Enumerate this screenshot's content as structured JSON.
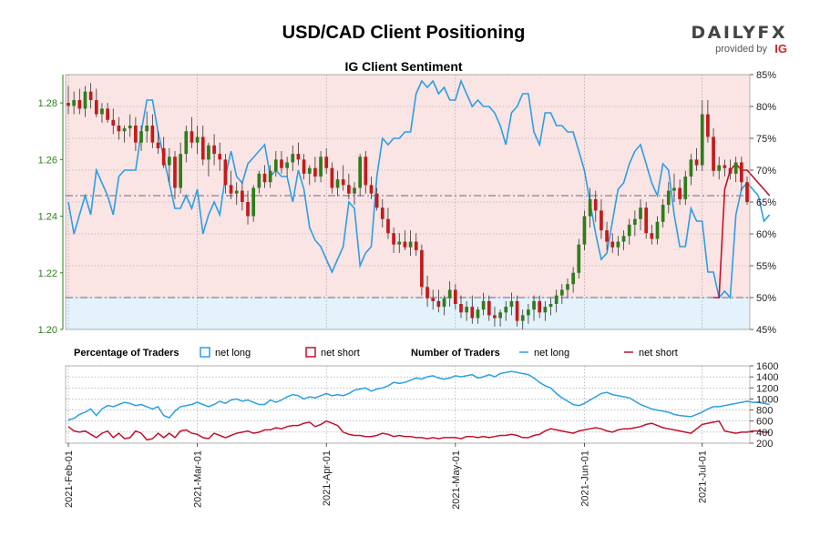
{
  "page_title": "USD/CAD Client Positioning",
  "brand": {
    "name": "DAILYFX",
    "tagline": "provided by",
    "logo": "IG"
  },
  "chart_data": {
    "type": "candlestick",
    "title": "IG Client Sentiment",
    "colors": {
      "up": "#2e7d1b",
      "down": "#c41a1a",
      "long": "#2a9fe4",
      "short": "#c1122a",
      "long_fill": "#e3f2fb",
      "short_fill": "#fbe4e4",
      "grid": "#999999",
      "ref": "#666688"
    },
    "price_axis": {
      "min": 1.2,
      "max": 1.29,
      "ticks": [
        1.2,
        1.22,
        1.24,
        1.26,
        1.28
      ],
      "tick_labels": [
        "1.20",
        "1.22",
        "1.24",
        "1.26",
        "1.28"
      ]
    },
    "pct_axis": {
      "min": 45,
      "max": 85,
      "ticks": [
        45,
        50,
        55,
        60,
        65,
        70,
        75,
        80,
        85
      ],
      "tick_labels": [
        "45%",
        "50%",
        "55%",
        "60%",
        "65%",
        "70%",
        "75%",
        "80%",
        "85%"
      ]
    },
    "ref_lines": [
      {
        "pct": 66,
        "style": "dash-dot"
      },
      {
        "pct": 50,
        "style": "dash-dot"
      }
    ],
    "candles": [
      {
        "o": 1.28,
        "h": 1.286,
        "l": 1.276,
        "c": 1.279
      },
      {
        "o": 1.279,
        "h": 1.284,
        "l": 1.276,
        "c": 1.281
      },
      {
        "o": 1.281,
        "h": 1.285,
        "l": 1.276,
        "c": 1.278
      },
      {
        "o": 1.278,
        "h": 1.286,
        "l": 1.275,
        "c": 1.284
      },
      {
        "o": 1.284,
        "h": 1.287,
        "l": 1.278,
        "c": 1.281
      },
      {
        "o": 1.281,
        "h": 1.285,
        "l": 1.275,
        "c": 1.276
      },
      {
        "o": 1.276,
        "h": 1.28,
        "l": 1.273,
        "c": 1.278
      },
      {
        "o": 1.278,
        "h": 1.28,
        "l": 1.273,
        "c": 1.274
      },
      {
        "o": 1.274,
        "h": 1.278,
        "l": 1.269,
        "c": 1.272
      },
      {
        "o": 1.272,
        "h": 1.275,
        "l": 1.267,
        "c": 1.27
      },
      {
        "o": 1.27,
        "h": 1.272,
        "l": 1.266,
        "c": 1.271
      },
      {
        "o": 1.271,
        "h": 1.276,
        "l": 1.268,
        "c": 1.272
      },
      {
        "o": 1.272,
        "h": 1.275,
        "l": 1.263,
        "c": 1.266
      },
      {
        "o": 1.266,
        "h": 1.272,
        "l": 1.263,
        "c": 1.27
      },
      {
        "o": 1.27,
        "h": 1.277,
        "l": 1.266,
        "c": 1.272
      },
      {
        "o": 1.272,
        "h": 1.276,
        "l": 1.264,
        "c": 1.266
      },
      {
        "o": 1.266,
        "h": 1.27,
        "l": 1.262,
        "c": 1.264
      },
      {
        "o": 1.264,
        "h": 1.268,
        "l": 1.257,
        "c": 1.258
      },
      {
        "o": 1.258,
        "h": 1.264,
        "l": 1.252,
        "c": 1.261
      },
      {
        "o": 1.261,
        "h": 1.263,
        "l": 1.246,
        "c": 1.25
      },
      {
        "o": 1.25,
        "h": 1.266,
        "l": 1.248,
        "c": 1.262
      },
      {
        "o": 1.262,
        "h": 1.272,
        "l": 1.259,
        "c": 1.27
      },
      {
        "o": 1.27,
        "h": 1.275,
        "l": 1.264,
        "c": 1.266
      },
      {
        "o": 1.266,
        "h": 1.272,
        "l": 1.262,
        "c": 1.268
      },
      {
        "o": 1.268,
        "h": 1.272,
        "l": 1.258,
        "c": 1.26
      },
      {
        "o": 1.26,
        "h": 1.266,
        "l": 1.254,
        "c": 1.265
      },
      {
        "o": 1.265,
        "h": 1.269,
        "l": 1.258,
        "c": 1.262
      },
      {
        "o": 1.262,
        "h": 1.266,
        "l": 1.256,
        "c": 1.26
      },
      {
        "o": 1.26,
        "h": 1.262,
        "l": 1.248,
        "c": 1.251
      },
      {
        "o": 1.251,
        "h": 1.256,
        "l": 1.246,
        "c": 1.248
      },
      {
        "o": 1.248,
        "h": 1.252,
        "l": 1.244,
        "c": 1.249
      },
      {
        "o": 1.249,
        "h": 1.252,
        "l": 1.242,
        "c": 1.245
      },
      {
        "o": 1.245,
        "h": 1.249,
        "l": 1.237,
        "c": 1.24
      },
      {
        "o": 1.24,
        "h": 1.251,
        "l": 1.238,
        "c": 1.25
      },
      {
        "o": 1.25,
        "h": 1.256,
        "l": 1.248,
        "c": 1.255
      },
      {
        "o": 1.255,
        "h": 1.258,
        "l": 1.25,
        "c": 1.252
      },
      {
        "o": 1.252,
        "h": 1.258,
        "l": 1.25,
        "c": 1.256
      },
      {
        "o": 1.256,
        "h": 1.263,
        "l": 1.254,
        "c": 1.26
      },
      {
        "o": 1.26,
        "h": 1.263,
        "l": 1.255,
        "c": 1.257
      },
      {
        "o": 1.257,
        "h": 1.261,
        "l": 1.254,
        "c": 1.259
      },
      {
        "o": 1.259,
        "h": 1.265,
        "l": 1.256,
        "c": 1.262
      },
      {
        "o": 1.262,
        "h": 1.266,
        "l": 1.258,
        "c": 1.26
      },
      {
        "o": 1.26,
        "h": 1.262,
        "l": 1.253,
        "c": 1.255
      },
      {
        "o": 1.255,
        "h": 1.258,
        "l": 1.251,
        "c": 1.257
      },
      {
        "o": 1.257,
        "h": 1.261,
        "l": 1.252,
        "c": 1.254
      },
      {
        "o": 1.254,
        "h": 1.263,
        "l": 1.252,
        "c": 1.261
      },
      {
        "o": 1.261,
        "h": 1.264,
        "l": 1.255,
        "c": 1.257
      },
      {
        "o": 1.257,
        "h": 1.259,
        "l": 1.248,
        "c": 1.25
      },
      {
        "o": 1.25,
        "h": 1.256,
        "l": 1.247,
        "c": 1.253
      },
      {
        "o": 1.253,
        "h": 1.258,
        "l": 1.249,
        "c": 1.251
      },
      {
        "o": 1.251,
        "h": 1.255,
        "l": 1.246,
        "c": 1.248
      },
      {
        "o": 1.248,
        "h": 1.252,
        "l": 1.244,
        "c": 1.25
      },
      {
        "o": 1.25,
        "h": 1.262,
        "l": 1.247,
        "c": 1.261
      },
      {
        "o": 1.261,
        "h": 1.263,
        "l": 1.248,
        "c": 1.251
      },
      {
        "o": 1.251,
        "h": 1.254,
        "l": 1.246,
        "c": 1.248
      },
      {
        "o": 1.248,
        "h": 1.25,
        "l": 1.242,
        "c": 1.243
      },
      {
        "o": 1.243,
        "h": 1.246,
        "l": 1.236,
        "c": 1.239
      },
      {
        "o": 1.239,
        "h": 1.243,
        "l": 1.232,
        "c": 1.234
      },
      {
        "o": 1.234,
        "h": 1.236,
        "l": 1.227,
        "c": 1.23
      },
      {
        "o": 1.23,
        "h": 1.234,
        "l": 1.227,
        "c": 1.231
      },
      {
        "o": 1.231,
        "h": 1.235,
        "l": 1.228,
        "c": 1.229
      },
      {
        "o": 1.229,
        "h": 1.235,
        "l": 1.226,
        "c": 1.231
      },
      {
        "o": 1.231,
        "h": 1.234,
        "l": 1.226,
        "c": 1.228
      },
      {
        "o": 1.228,
        "h": 1.23,
        "l": 1.212,
        "c": 1.215
      },
      {
        "o": 1.215,
        "h": 1.219,
        "l": 1.208,
        "c": 1.211
      },
      {
        "o": 1.211,
        "h": 1.214,
        "l": 1.207,
        "c": 1.21
      },
      {
        "o": 1.21,
        "h": 1.214,
        "l": 1.206,
        "c": 1.208
      },
      {
        "o": 1.208,
        "h": 1.212,
        "l": 1.205,
        "c": 1.211
      },
      {
        "o": 1.211,
        "h": 1.217,
        "l": 1.208,
        "c": 1.214
      },
      {
        "o": 1.214,
        "h": 1.216,
        "l": 1.207,
        "c": 1.209
      },
      {
        "o": 1.209,
        "h": 1.212,
        "l": 1.204,
        "c": 1.206
      },
      {
        "o": 1.206,
        "h": 1.21,
        "l": 1.203,
        "c": 1.208
      },
      {
        "o": 1.208,
        "h": 1.212,
        "l": 1.202,
        "c": 1.204
      },
      {
        "o": 1.204,
        "h": 1.208,
        "l": 1.202,
        "c": 1.207
      },
      {
        "o": 1.207,
        "h": 1.213,
        "l": 1.205,
        "c": 1.21
      },
      {
        "o": 1.21,
        "h": 1.212,
        "l": 1.203,
        "c": 1.205
      },
      {
        "o": 1.205,
        "h": 1.208,
        "l": 1.201,
        "c": 1.204
      },
      {
        "o": 1.204,
        "h": 1.207,
        "l": 1.201,
        "c": 1.206
      },
      {
        "o": 1.206,
        "h": 1.21,
        "l": 1.203,
        "c": 1.208
      },
      {
        "o": 1.208,
        "h": 1.213,
        "l": 1.205,
        "c": 1.21
      },
      {
        "o": 1.21,
        "h": 1.212,
        "l": 1.201,
        "c": 1.203
      },
      {
        "o": 1.203,
        "h": 1.207,
        "l": 1.2,
        "c": 1.205
      },
      {
        "o": 1.205,
        "h": 1.209,
        "l": 1.202,
        "c": 1.207
      },
      {
        "o": 1.207,
        "h": 1.212,
        "l": 1.203,
        "c": 1.21
      },
      {
        "o": 1.21,
        "h": 1.212,
        "l": 1.204,
        "c": 1.206
      },
      {
        "o": 1.206,
        "h": 1.21,
        "l": 1.203,
        "c": 1.208
      },
      {
        "o": 1.208,
        "h": 1.211,
        "l": 1.205,
        "c": 1.209
      },
      {
        "o": 1.209,
        "h": 1.214,
        "l": 1.206,
        "c": 1.212
      },
      {
        "o": 1.212,
        "h": 1.216,
        "l": 1.209,
        "c": 1.214
      },
      {
        "o": 1.214,
        "h": 1.218,
        "l": 1.211,
        "c": 1.216
      },
      {
        "o": 1.216,
        "h": 1.222,
        "l": 1.213,
        "c": 1.22
      },
      {
        "o": 1.22,
        "h": 1.232,
        "l": 1.218,
        "c": 1.23
      },
      {
        "o": 1.23,
        "h": 1.242,
        "l": 1.228,
        "c": 1.24
      },
      {
        "o": 1.24,
        "h": 1.25,
        "l": 1.236,
        "c": 1.246
      },
      {
        "o": 1.246,
        "h": 1.249,
        "l": 1.238,
        "c": 1.242
      },
      {
        "o": 1.242,
        "h": 1.246,
        "l": 1.232,
        "c": 1.235
      },
      {
        "o": 1.235,
        "h": 1.238,
        "l": 1.228,
        "c": 1.231
      },
      {
        "o": 1.231,
        "h": 1.234,
        "l": 1.227,
        "c": 1.229
      },
      {
        "o": 1.229,
        "h": 1.233,
        "l": 1.226,
        "c": 1.231
      },
      {
        "o": 1.231,
        "h": 1.235,
        "l": 1.228,
        "c": 1.233
      },
      {
        "o": 1.233,
        "h": 1.239,
        "l": 1.23,
        "c": 1.237
      },
      {
        "o": 1.237,
        "h": 1.242,
        "l": 1.233,
        "c": 1.239
      },
      {
        "o": 1.239,
        "h": 1.246,
        "l": 1.235,
        "c": 1.243
      },
      {
        "o": 1.243,
        "h": 1.245,
        "l": 1.232,
        "c": 1.234
      },
      {
        "o": 1.234,
        "h": 1.237,
        "l": 1.23,
        "c": 1.232
      },
      {
        "o": 1.232,
        "h": 1.24,
        "l": 1.23,
        "c": 1.238
      },
      {
        "o": 1.238,
        "h": 1.246,
        "l": 1.236,
        "c": 1.244
      },
      {
        "o": 1.244,
        "h": 1.252,
        "l": 1.241,
        "c": 1.249
      },
      {
        "o": 1.249,
        "h": 1.255,
        "l": 1.245,
        "c": 1.25
      },
      {
        "o": 1.25,
        "h": 1.253,
        "l": 1.244,
        "c": 1.246
      },
      {
        "o": 1.246,
        "h": 1.256,
        "l": 1.244,
        "c": 1.254
      },
      {
        "o": 1.254,
        "h": 1.262,
        "l": 1.251,
        "c": 1.26
      },
      {
        "o": 1.26,
        "h": 1.264,
        "l": 1.256,
        "c": 1.258
      },
      {
        "o": 1.258,
        "h": 1.281,
        "l": 1.256,
        "c": 1.276
      },
      {
        "o": 1.276,
        "h": 1.281,
        "l": 1.266,
        "c": 1.268
      },
      {
        "o": 1.268,
        "h": 1.271,
        "l": 1.254,
        "c": 1.256
      },
      {
        "o": 1.256,
        "h": 1.261,
        "l": 1.253,
        "c": 1.258
      },
      {
        "o": 1.258,
        "h": 1.26,
        "l": 1.254,
        "c": 1.257
      },
      {
        "o": 1.257,
        "h": 1.26,
        "l": 1.253,
        "c": 1.255
      },
      {
        "o": 1.255,
        "h": 1.261,
        "l": 1.252,
        "c": 1.259
      },
      {
        "o": 1.259,
        "h": 1.261,
        "l": 1.249,
        "c": 1.252
      },
      {
        "o": 1.252,
        "h": 1.254,
        "l": 1.244,
        "c": 1.245
      }
    ],
    "pct_long": [
      65,
      60,
      63,
      66,
      63,
      70,
      68,
      66,
      63,
      69,
      70,
      70,
      70,
      76,
      81,
      81,
      76,
      72,
      68,
      64,
      64,
      66,
      64,
      67,
      60,
      63,
      65,
      63,
      69,
      73,
      69,
      68,
      71,
      72,
      73,
      74,
      69,
      70,
      69,
      69,
      65,
      70,
      67,
      61,
      59,
      58,
      56,
      54,
      56,
      58,
      65,
      64,
      55,
      57,
      58,
      69,
      75,
      74,
      75,
      75,
      76,
      76,
      82,
      84,
      83,
      84,
      82,
      83,
      81,
      81,
      84,
      82,
      80,
      81,
      80,
      80,
      79,
      77,
      74,
      79,
      80,
      82,
      82,
      76,
      74,
      79,
      79,
      77,
      77,
      76,
      76,
      73,
      70,
      65,
      60,
      56,
      57,
      62,
      67,
      68,
      71,
      73,
      74,
      71,
      68,
      66,
      71,
      70,
      63,
      58,
      58,
      64,
      62,
      62,
      54,
      54,
      50,
      51,
      50,
      63,
      67,
      68,
      67,
      66,
      62,
      63
    ],
    "pct_short_tail": [
      {
        "i": 115,
        "v": 50
      },
      {
        "i": 116,
        "v": 50
      },
      {
        "i": 117,
        "v": 67
      },
      {
        "i": 118,
        "v": 70
      },
      {
        "i": 119,
        "v": 71
      },
      {
        "i": 120,
        "v": 70
      },
      {
        "i": 121,
        "v": 70
      },
      {
        "i": 122,
        "v": 69
      },
      {
        "i": 123,
        "v": 68
      },
      {
        "i": 124,
        "v": 67
      },
      {
        "i": 125,
        "v": 66
      }
    ],
    "traders_axis": {
      "min": 200,
      "max": 1600,
      "ticks": [
        200,
        400,
        600,
        800,
        1000,
        1200,
        1400,
        1600
      ],
      "tick_labels": [
        "200",
        "400",
        "600",
        "800",
        "1000",
        "1200",
        "1400",
        "1600"
      ]
    },
    "traders_long": [
      620,
      650,
      720,
      760,
      820,
      700,
      820,
      880,
      860,
      900,
      940,
      920,
      880,
      900,
      860,
      820,
      860,
      700,
      660,
      780,
      860,
      880,
      900,
      940,
      900,
      860,
      900,
      960,
      920,
      980,
      1000,
      960,
      980,
      940,
      900,
      900,
      980,
      940,
      980,
      1040,
      1080,
      1060,
      1000,
      1040,
      1020,
      1060,
      1100,
      1060,
      1080,
      1060,
      1100,
      1160,
      1180,
      1200,
      1140,
      1180,
      1200,
      1240,
      1300,
      1280,
      1300,
      1340,
      1380,
      1360,
      1400,
      1420,
      1380,
      1360,
      1380,
      1420,
      1400,
      1420,
      1440,
      1380,
      1400,
      1440,
      1400,
      1460,
      1480,
      1500,
      1480,
      1460,
      1440,
      1380,
      1300,
      1240,
      1200,
      1100,
      1020,
      960,
      900,
      880,
      920,
      980,
      1040,
      1100,
      1120,
      1080,
      1060,
      1040,
      1020,
      960,
      900,
      860,
      820,
      800,
      780,
      760,
      720,
      700,
      690,
      680,
      720,
      760,
      820,
      860,
      860,
      880,
      900,
      920,
      940,
      960,
      940,
      940,
      920,
      900
    ],
    "traders_short": [
      500,
      420,
      400,
      420,
      360,
      300,
      380,
      420,
      300,
      380,
      280,
      300,
      420,
      380,
      260,
      280,
      380,
      300,
      380,
      300,
      420,
      440,
      380,
      360,
      300,
      280,
      380,
      340,
      300,
      340,
      380,
      400,
      420,
      380,
      400,
      440,
      440,
      480,
      460,
      500,
      520,
      520,
      560,
      580,
      500,
      540,
      600,
      560,
      520,
      400,
      360,
      340,
      340,
      320,
      320,
      340,
      380,
      360,
      320,
      340,
      320,
      320,
      300,
      300,
      280,
      300,
      280,
      300,
      300,
      300,
      280,
      320,
      320,
      300,
      320,
      300,
      320,
      340,
      340,
      360,
      340,
      300,
      300,
      340,
      360,
      420,
      460,
      440,
      420,
      400,
      380,
      420,
      440,
      460,
      480,
      460,
      420,
      400,
      440,
      460,
      460,
      480,
      500,
      540,
      560,
      520,
      480,
      460,
      440,
      420,
      400,
      380,
      460,
      540,
      560,
      580,
      600,
      420,
      400,
      380,
      400,
      400,
      420,
      420,
      400,
      400
    ],
    "bottom_legend": {
      "pct_title": "Percentage of Traders",
      "num_title": "Number of Traders",
      "net_long": "net long",
      "net_short": "net short"
    },
    "date_labels": [
      {
        "i": 0,
        "label": "2021-Feb-01"
      },
      {
        "i": 23,
        "label": "2021-Mar-01"
      },
      {
        "i": 46,
        "label": "2021-Apr-01"
      },
      {
        "i": 69,
        "label": "2021-May-01"
      },
      {
        "i": 92,
        "label": "2021-Jun-01"
      },
      {
        "i": 113,
        "label": "2021-Jul-01"
      }
    ]
  }
}
